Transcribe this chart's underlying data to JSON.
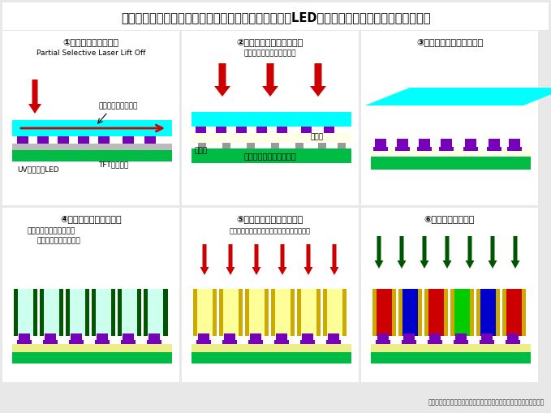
{
  "title": "ブイ・テクノロジーが考案したフレキシブルマイクロLEDディスプレーの製造プロセスフロー",
  "bg_color": "#e8e8e8",
  "panel_color": "#ffffff",
  "title_color": "#000000",
  "title_fontsize": 10.5,
  "footer": "（ブイ・テクノロジーの講演をもとに電子デバイス産業新聞が作成）",
  "step_titles": [
    "①レーザーリフトオフ",
    "②バックプレーンに熱圧着",
    "③サファイアウエハー剥離",
    "④蛍光体セルのリブ形成",
    "⑤リブ側壁にメタルコート",
    "⑥無機蛍光体を充填"
  ],
  "cyan_color": "#00ffff",
  "green_color": "#00bb44",
  "yellow_light": "#ffffe0",
  "yellow_board": "#eeee88",
  "purple_color": "#7700bb",
  "gray_color": "#999999",
  "red_color": "#cc0000",
  "dark_green_color": "#005500",
  "gold_color": "#ccaa00",
  "blue_color": "#0000cc",
  "lime_color": "#00cc00",
  "light_cyan_cell": "#ccffee",
  "yellow_cell": "#ffff99"
}
